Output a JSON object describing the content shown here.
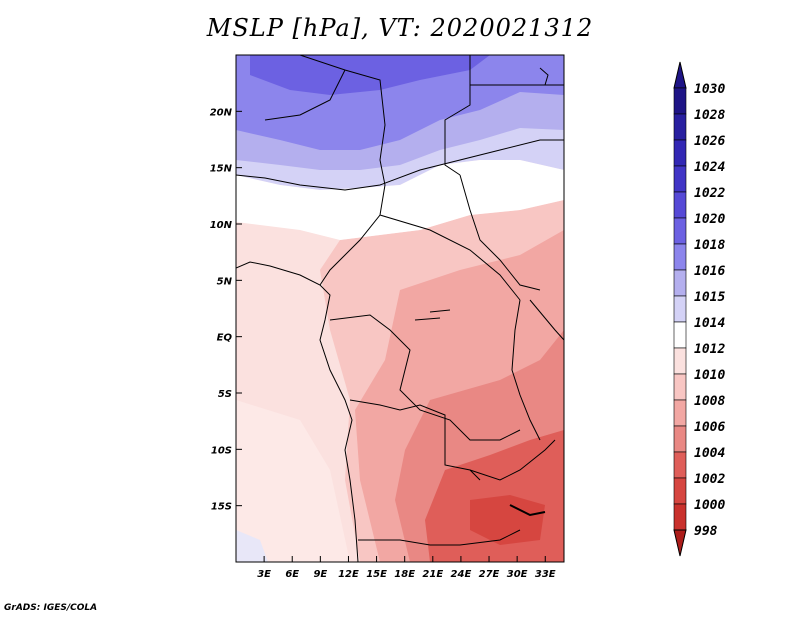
{
  "title": "MSLP [hPa], VT: 2020021312",
  "credit": "GrADS: IGES/COLA",
  "map": {
    "lon_range": [
      0,
      35
    ],
    "lat_range": [
      -20,
      25
    ],
    "lat_ticks": [
      {
        "value": 20,
        "label": "20N"
      },
      {
        "value": 15,
        "label": "15N"
      },
      {
        "value": 10,
        "label": "10N"
      },
      {
        "value": 5,
        "label": "5N"
      },
      {
        "value": 0,
        "label": "EQ"
      },
      {
        "value": -5,
        "label": "5S"
      },
      {
        "value": -10,
        "label": "10S"
      },
      {
        "value": -15,
        "label": "15S"
      }
    ],
    "lon_ticks": [
      {
        "value": 3,
        "label": "3E"
      },
      {
        "value": 6,
        "label": "6E"
      },
      {
        "value": 9,
        "label": "9E"
      },
      {
        "value": 12,
        "label": "12E"
      },
      {
        "value": 15,
        "label": "15E"
      },
      {
        "value": 18,
        "label": "18E"
      },
      {
        "value": 21,
        "label": "21E"
      },
      {
        "value": 24,
        "label": "24E"
      },
      {
        "value": 27,
        "label": "27E"
      },
      {
        "value": 30,
        "label": "30E"
      },
      {
        "value": 33,
        "label": "33E"
      }
    ]
  },
  "colorbar": {
    "levels": [
      {
        "label": "1030",
        "color": "#1e1486"
      },
      {
        "label": "1028",
        "color": "#281fa0"
      },
      {
        "label": "1026",
        "color": "#3227b4"
      },
      {
        "label": "1024",
        "color": "#4135c6"
      },
      {
        "label": "1022",
        "color": "#5649d6"
      },
      {
        "label": "1020",
        "color": "#6c61e2"
      },
      {
        "label": "1018",
        "color": "#8c85ec"
      },
      {
        "label": "1016",
        "color": "#b4afee"
      },
      {
        "label": "1015",
        "color": "#d4d2f6"
      },
      {
        "label": "1014",
        "color": "#ffffff"
      },
      {
        "label": "1012",
        "color": "#fbe1df"
      },
      {
        "label": "1010",
        "color": "#f8c6c3"
      },
      {
        "label": "1008",
        "color": "#f2a7a3"
      },
      {
        "label": "1006",
        "color": "#e98884"
      },
      {
        "label": "1004",
        "color": "#df5e59"
      },
      {
        "label": "1002",
        "color": "#d64640"
      },
      {
        "label": "1000",
        "color": "#c9312c"
      },
      {
        "label": "998",
        "color": "#ad1d1a"
      }
    ]
  }
}
